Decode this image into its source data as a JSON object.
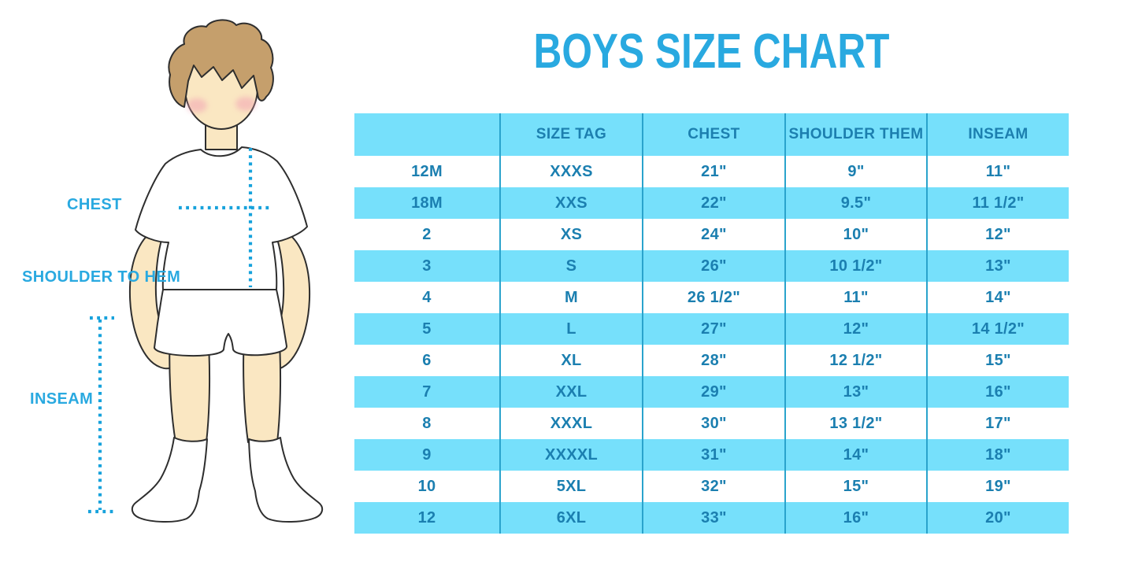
{
  "title": "BOYS SIZE CHART",
  "colors": {
    "accent_blue": "#29A9E0",
    "stripe_blue": "#76E0FB",
    "column_divider": "#2AA3CC",
    "table_text": "#1B7FB0",
    "measure_dots": "#17A2DC",
    "hair_brown": "#C59F6C",
    "skin_tone": "#FAE7C2",
    "blush_pink": "#F2A3B4"
  },
  "figure": {
    "labels": {
      "chest": "CHEST",
      "shoulder_to_hem": "SHOULDER TO HEM",
      "inseam": "INSEAM"
    }
  },
  "chart_data": {
    "type": "table",
    "title": "BOYS SIZE CHART",
    "columns": [
      "",
      "SIZE TAG",
      "CHEST",
      "SHOULDER THEM",
      "INSEAM"
    ],
    "rows": [
      [
        "12M",
        "XXXS",
        "21\"",
        "9\"",
        "11\""
      ],
      [
        "18M",
        "XXS",
        "22\"",
        "9.5\"",
        "11 1/2\""
      ],
      [
        "2",
        "XS",
        "24\"",
        "10\"",
        "12\""
      ],
      [
        "3",
        "S",
        "26\"",
        "10 1/2\"",
        "13\""
      ],
      [
        "4",
        "M",
        "26 1/2\"",
        "11\"",
        "14\""
      ],
      [
        "5",
        "L",
        "27\"",
        "12\"",
        "14 1/2\""
      ],
      [
        "6",
        "XL",
        "28\"",
        "12 1/2\"",
        "15\""
      ],
      [
        "7",
        "XXL",
        "29\"",
        "13\"",
        "16\""
      ],
      [
        "8",
        "XXXL",
        "30\"",
        "13 1/2\"",
        "17\""
      ],
      [
        "9",
        "XXXXL",
        "31\"",
        "14\"",
        "18\""
      ],
      [
        "10",
        "5XL",
        "32\"",
        "15\"",
        "19\""
      ],
      [
        "12",
        "6XL",
        "33\"",
        "16\"",
        "20\""
      ]
    ],
    "layout": {
      "stripe_pattern": "header blue, data rows alternate white/blue starting white",
      "grid": "vertical column dividers only"
    }
  }
}
